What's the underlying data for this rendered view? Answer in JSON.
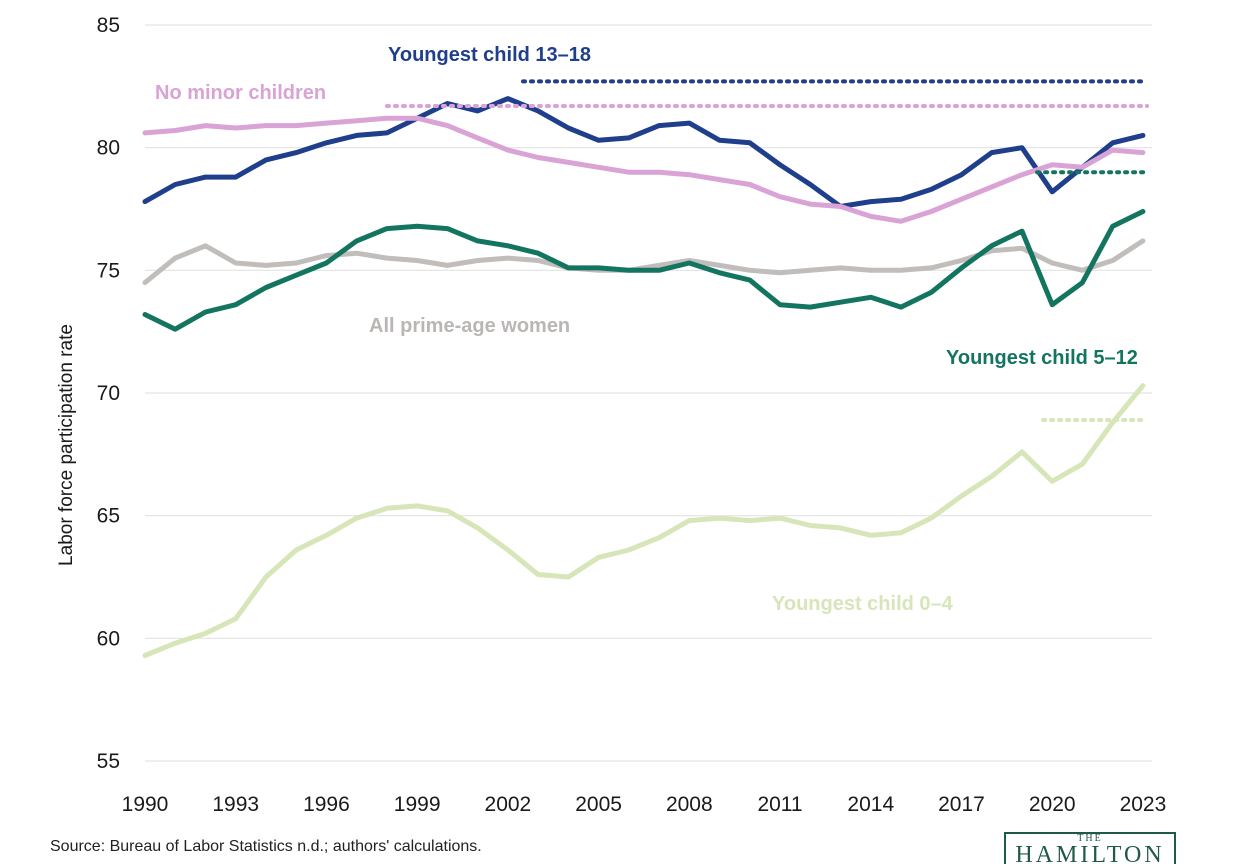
{
  "chart_data": {
    "type": "line",
    "ylabel": "Labor force participation rate",
    "ylim": [
      55,
      85
    ],
    "yticks": [
      55,
      60,
      65,
      70,
      75,
      80,
      85
    ],
    "xlim": [
      1990,
      2023.3
    ],
    "xticks": [
      1990,
      1993,
      1996,
      1999,
      2002,
      2005,
      2008,
      2011,
      2014,
      2017,
      2020,
      2023
    ],
    "grid": "horizontal",
    "legend": "direct labels",
    "series": [
      {
        "name": "Youngest child 13–18",
        "color": "#1f3f8c",
        "x": [
          1990,
          1991,
          1992,
          1993,
          1994,
          1995,
          1996,
          1997,
          1998,
          1999,
          2000,
          2001,
          2002,
          2003,
          2004,
          2005,
          2006,
          2007,
          2008,
          2009,
          2010,
          2011,
          2012,
          2013,
          2014,
          2015,
          2016,
          2017,
          2018,
          2019,
          2020,
          2021,
          2022,
          2023
        ],
        "y": [
          77.8,
          78.5,
          78.8,
          78.8,
          79.5,
          79.8,
          80.2,
          80.5,
          80.6,
          81.2,
          81.8,
          81.5,
          82.0,
          81.5,
          80.8,
          80.3,
          80.4,
          80.9,
          81.0,
          80.3,
          80.2,
          79.3,
          78.5,
          77.6,
          77.8,
          77.9,
          78.3,
          78.9,
          79.8,
          80.0,
          78.2,
          79.2,
          80.2,
          80.5
        ],
        "peak": 82.7,
        "peak_from": 2002.5
      },
      {
        "name": "No minor children",
        "color": "#d9a3d6",
        "x": [
          1990,
          1991,
          1992,
          1993,
          1994,
          1995,
          1996,
          1997,
          1998,
          1999,
          2000,
          2001,
          2002,
          2003,
          2004,
          2005,
          2006,
          2007,
          2008,
          2009,
          2010,
          2011,
          2012,
          2013,
          2014,
          2015,
          2016,
          2017,
          2018,
          2019,
          2020,
          2021,
          2022,
          2023
        ],
        "y": [
          80.6,
          80.7,
          80.9,
          80.8,
          80.9,
          80.9,
          81.0,
          81.1,
          81.2,
          81.2,
          80.9,
          80.4,
          79.9,
          79.6,
          79.4,
          79.2,
          79.0,
          79.0,
          78.9,
          78.7,
          78.5,
          78.0,
          77.7,
          77.6,
          77.2,
          77.0,
          77.4,
          77.9,
          78.4,
          78.9,
          79.3,
          79.2,
          79.9,
          79.8
        ],
        "peak": 81.7,
        "peak_from": 1998.0
      },
      {
        "name": "All prime-age women",
        "color": "#c0bdbb",
        "x": [
          1990,
          1991,
          1992,
          1993,
          1994,
          1995,
          1996,
          1997,
          1998,
          1999,
          2000,
          2001,
          2002,
          2003,
          2004,
          2005,
          2006,
          2007,
          2008,
          2009,
          2010,
          2011,
          2012,
          2013,
          2014,
          2015,
          2016,
          2017,
          2018,
          2019,
          2020,
          2021,
          2022,
          2023
        ],
        "y": [
          74.5,
          75.5,
          76.0,
          75.3,
          75.2,
          75.3,
          75.6,
          75.7,
          75.5,
          75.4,
          75.2,
          75.4,
          75.5,
          75.4,
          75.1,
          75.0,
          75.0,
          75.2,
          75.4,
          75.2,
          75.0,
          74.9,
          75.0,
          75.1,
          75.0,
          75.0,
          75.1,
          75.4,
          75.8,
          75.9,
          75.3,
          75.0,
          75.4,
          76.2
        ]
      },
      {
        "name": "Youngest child 5–12",
        "color": "#137560",
        "x": [
          1990,
          1991,
          1992,
          1993,
          1994,
          1995,
          1996,
          1997,
          1998,
          1999,
          2000,
          2001,
          2002,
          2003,
          2004,
          2005,
          2006,
          2007,
          2008,
          2009,
          2010,
          2011,
          2012,
          2013,
          2014,
          2015,
          2016,
          2017,
          2018,
          2019,
          2020,
          2021,
          2022,
          2023
        ],
        "y": [
          73.2,
          72.6,
          73.3,
          73.6,
          74.3,
          74.8,
          75.3,
          76.2,
          76.7,
          76.8,
          76.7,
          76.2,
          76.0,
          75.7,
          75.1,
          75.1,
          75.0,
          75.0,
          75.3,
          74.9,
          74.6,
          73.6,
          73.5,
          73.7,
          73.9,
          73.5,
          74.1,
          75.1,
          76.0,
          76.6,
          73.6,
          74.5,
          76.8,
          77.4
        ],
        "peak": 79.0,
        "peak_from": 2019.5
      },
      {
        "name": "Youngest child 0–4",
        "color": "#d6e6b9",
        "x": [
          1990,
          1991,
          1992,
          1993,
          1994,
          1995,
          1996,
          1997,
          1998,
          1999,
          2000,
          2001,
          2002,
          2003,
          2004,
          2005,
          2006,
          2007,
          2008,
          2009,
          2010,
          2011,
          2012,
          2013,
          2014,
          2015,
          2016,
          2017,
          2018,
          2019,
          2020,
          2021,
          2022,
          2023
        ],
        "y": [
          59.3,
          59.8,
          60.2,
          60.8,
          62.5,
          63.6,
          64.2,
          64.9,
          65.3,
          65.4,
          65.2,
          64.5,
          63.6,
          62.6,
          62.5,
          63.3,
          63.6,
          64.1,
          64.8,
          64.9,
          64.8,
          64.9,
          64.6,
          64.5,
          64.2,
          64.3,
          64.9,
          65.8,
          66.6,
          67.6,
          66.4,
          67.1,
          68.8,
          70.3
        ],
        "peak": 68.9,
        "peak_from": 2019.7
      }
    ]
  },
  "labels": {
    "s1": "Youngest child 13–18",
    "s2": "No minor children",
    "s3": "All prime-age women",
    "s4": "Youngest child 5–12",
    "s5": "Youngest child 0–4"
  },
  "footer": {
    "source": "Source: Bureau of Labor Statistics n.d.; authors' calculations.",
    "logo_the": "THE",
    "logo_name": "HAMILTON"
  }
}
